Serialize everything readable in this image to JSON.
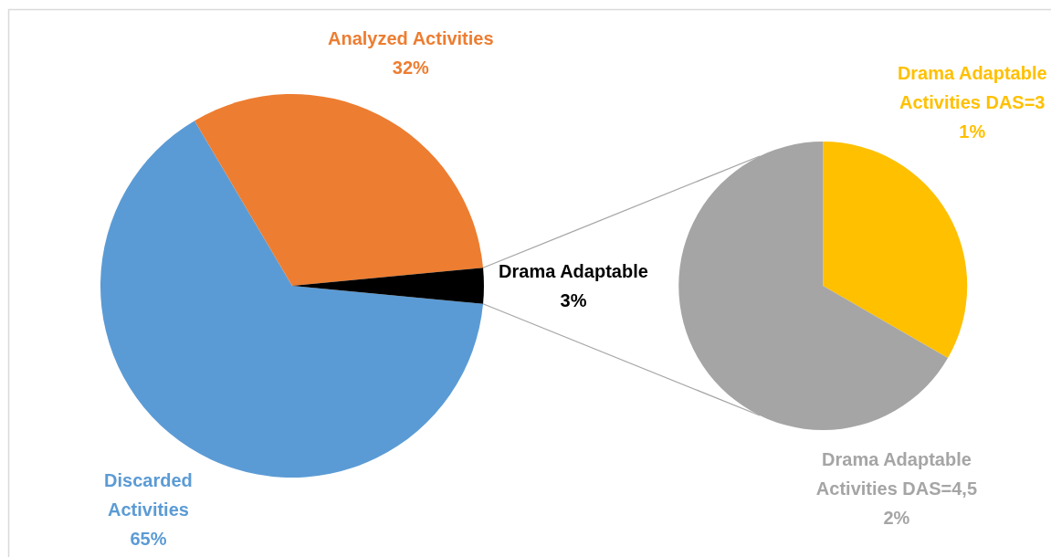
{
  "chart_data": [
    {
      "type": "pie",
      "categories": [
        "Discarded Activities",
        "Analyzed Activities",
        "Drama Adaptable"
      ],
      "values": [
        65,
        32,
        3
      ],
      "colors": [
        "#5b9bd5",
        "#ed7d31",
        "#000000"
      ],
      "value_labels": [
        "65%",
        "32%",
        "3%"
      ]
    },
    {
      "type": "pie",
      "categories": [
        "Drama Adaptable Activities DAS=3",
        "Drama Adaptable Activities DAS=4,5"
      ],
      "values": [
        1,
        2
      ],
      "colors": [
        "#ffc000",
        "#a5a5a5"
      ],
      "value_labels": [
        "1%",
        "2%"
      ]
    }
  ]
}
